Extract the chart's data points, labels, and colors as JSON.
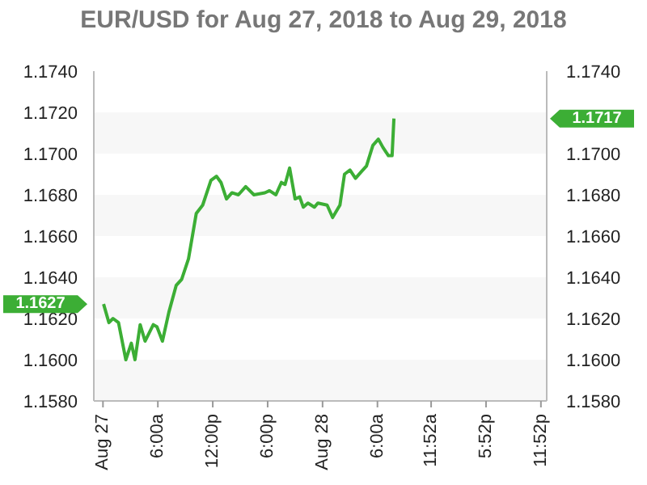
{
  "chart_data": {
    "type": "line",
    "title": "EUR/USD for Aug 27, 2018 to Aug 29, 2018",
    "x": [
      "2018-08-27T00:04",
      "2018-08-27T00:39",
      "2018-08-27T01:06",
      "2018-08-27T01:42",
      "2018-08-27T02:30",
      "2018-08-27T03:06",
      "2018-08-27T03:30",
      "2018-08-27T04:04",
      "2018-08-27T04:36",
      "2018-08-27T05:30",
      "2018-08-27T05:54",
      "2018-08-27T06:30",
      "2018-08-27T07:12",
      "2018-08-27T08:00",
      "2018-08-27T08:36",
      "2018-08-27T09:21",
      "2018-08-27T10:12",
      "2018-08-27T10:54",
      "2018-08-27T11:48",
      "2018-08-27T12:24",
      "2018-08-27T12:54",
      "2018-08-27T13:30",
      "2018-08-27T14:06",
      "2018-08-27T14:48",
      "2018-08-27T15:36",
      "2018-08-27T16:30",
      "2018-08-27T17:42",
      "2018-08-27T18:12",
      "2018-08-27T18:54",
      "2018-08-27T19:30",
      "2018-08-27T19:54",
      "2018-08-27T20:24",
      "2018-08-27T21:00",
      "2018-08-27T21:30",
      "2018-08-27T21:54",
      "2018-08-27T22:24",
      "2018-08-27T23:06",
      "2018-08-27T23:30",
      "2018-08-28T00:30",
      "2018-08-28T01:06",
      "2018-08-28T01:54",
      "2018-08-28T02:24",
      "2018-08-28T03:00",
      "2018-08-28T03:36",
      "2018-08-28T04:12",
      "2018-08-28T04:48",
      "2018-08-28T05:30",
      "2018-08-28T06:06",
      "2018-08-28T06:36",
      "2018-08-28T07:12",
      "2018-08-28T07:36",
      "2018-08-28T07:48"
    ],
    "series": [
      {
        "color": "#3cae35",
        "values": [
          1.1627,
          1.1618,
          1.162,
          1.1618,
          1.16,
          1.1608,
          1.16,
          1.1617,
          1.1609,
          1.1617,
          1.1616,
          1.1609,
          1.1623,
          1.1636,
          1.1639,
          1.1649,
          1.1671,
          1.1675,
          1.1687,
          1.1689,
          1.1686,
          1.1678,
          1.1681,
          1.168,
          1.1684,
          1.168,
          1.1681,
          1.1682,
          1.168,
          1.1686,
          1.1685,
          1.1693,
          1.1678,
          1.1679,
          1.1674,
          1.1676,
          1.1674,
          1.1676,
          1.1675,
          1.1669,
          1.1675,
          1.169,
          1.1692,
          1.1688,
          1.1691,
          1.1694,
          1.1704,
          1.1707,
          1.1703,
          1.1699,
          1.1699,
          1.1717
        ]
      }
    ],
    "annotations": [
      {
        "text": "1.1627",
        "x": "2018-08-26T23:00",
        "y": 1.1627
      },
      {
        "text": "1.1717",
        "x": "2018-08-29T00:30",
        "y": 1.1717
      }
    ],
    "xlim": [
      "2018-08-26T23:00",
      "2018-08-29T00:30"
    ],
    "xticks": [
      {
        "value": "2018-08-27T00:00",
        "label": "Aug 27"
      },
      {
        "value": "2018-08-27T06:00",
        "label": "6:00a"
      },
      {
        "value": "2018-08-27T12:00",
        "label": "12:00p"
      },
      {
        "value": "2018-08-27T18:00",
        "label": "6:00p"
      },
      {
        "value": "2018-08-28T00:00",
        "label": "Aug 28"
      },
      {
        "value": "2018-08-28T06:00",
        "label": "6:00a"
      },
      {
        "value": "2018-08-28T11:52",
        "label": "11:52a"
      },
      {
        "value": "2018-08-28T17:52",
        "label": "5:52p"
      },
      {
        "value": "2018-08-28T23:52",
        "label": "11:52p"
      }
    ],
    "ylim": [
      1.158,
      1.174
    ],
    "yticks": [
      {
        "value": 1.158,
        "label": "1.1580"
      },
      {
        "value": 1.16,
        "label": "1.1600"
      },
      {
        "value": 1.162,
        "label": "1.1620"
      },
      {
        "value": 1.164,
        "label": "1.1640"
      },
      {
        "value": 1.166,
        "label": "1.1660"
      },
      {
        "value": 1.168,
        "label": "1.1680"
      },
      {
        "value": 1.17,
        "label": "1.1700"
      },
      {
        "value": 1.172,
        "label": "1.1720"
      },
      {
        "value": 1.174,
        "label": "1.1740"
      }
    ],
    "y2lim": [
      1.158,
      1.174
    ],
    "y2ticks": [
      {
        "value": 1.158,
        "label": "1.1580"
      },
      {
        "value": 1.16,
        "label": "1.1600"
      },
      {
        "value": 1.162,
        "label": "1.1620"
      },
      {
        "value": 1.164,
        "label": "1.1640"
      },
      {
        "value": 1.166,
        "label": "1.1660"
      },
      {
        "value": 1.168,
        "label": "1.1680"
      },
      {
        "value": 1.17,
        "label": "1.1700"
      },
      {
        "value": 1.174,
        "label": "1.1740"
      }
    ],
    "bands": [
      {
        "axis": "y",
        "from": 1.158,
        "to": 1.16,
        "color": "#f7f7f7"
      },
      {
        "axis": "y",
        "from": 1.162,
        "to": 1.164,
        "color": "#f7f7f7"
      },
      {
        "axis": "y",
        "from": 1.166,
        "to": 1.168,
        "color": "#f7f7f7"
      },
      {
        "axis": "y",
        "from": 1.17,
        "to": 1.172,
        "color": "#f7f7f7"
      }
    ],
    "legend": false,
    "marker": "none",
    "line_style": "solid"
  }
}
